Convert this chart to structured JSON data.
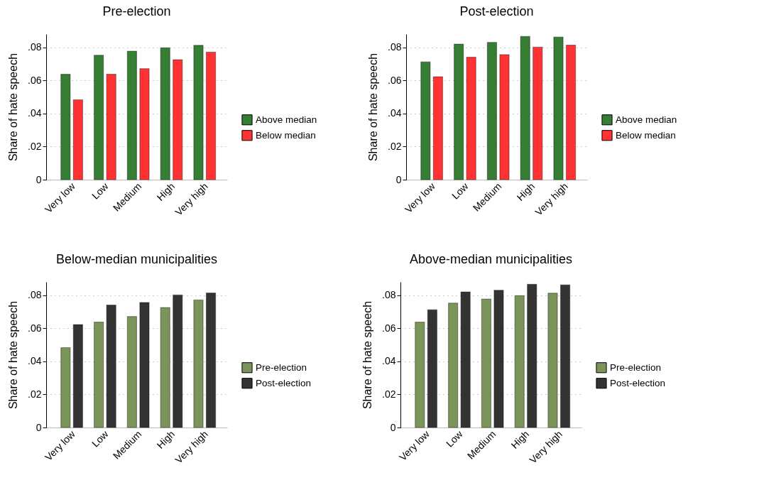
{
  "chart_data": [
    {
      "type": "bar",
      "title": "Pre-election",
      "ylabel": "Share of hate speech",
      "categories": [
        "Very low",
        "Low",
        "Medium",
        "High",
        "Very high"
      ],
      "series": [
        {
          "name": "Above median",
          "color": "#367e34",
          "values": [
            0.0637,
            0.0752,
            0.0777,
            0.0797,
            0.0812
          ]
        },
        {
          "name": "Below median",
          "color": "#ff3333",
          "values": [
            0.0483,
            0.0637,
            0.0671,
            0.0725,
            0.0771
          ]
        }
      ],
      "ylim": [
        0,
        0.088
      ],
      "yticks": [
        {
          "value": 0,
          "label": "0"
        },
        {
          "value": 0.02,
          "label": ".02"
        },
        {
          "value": 0.04,
          "label": ".04"
        },
        {
          "value": 0.06,
          "label": ".06"
        },
        {
          "value": 0.08,
          "label": ".08"
        }
      ],
      "grid": "y",
      "legend": "right"
    },
    {
      "type": "bar",
      "title": "Post-election",
      "ylabel": "Share of hate speech",
      "categories": [
        "Very low",
        "Low",
        "Medium",
        "High",
        "Very high"
      ],
      "series": [
        {
          "name": "Above median",
          "color": "#367e34",
          "values": [
            0.0712,
            0.082,
            0.083,
            0.0866,
            0.0862
          ]
        },
        {
          "name": "Below median",
          "color": "#ff3333",
          "values": [
            0.0622,
            0.074,
            0.0756,
            0.0801,
            0.0813
          ]
        }
      ],
      "ylim": [
        0,
        0.088
      ],
      "yticks": [
        {
          "value": 0,
          "label": "0"
        },
        {
          "value": 0.02,
          "label": ".02"
        },
        {
          "value": 0.04,
          "label": ".04"
        },
        {
          "value": 0.06,
          "label": ".06"
        },
        {
          "value": 0.08,
          "label": ".08"
        }
      ],
      "grid": "y",
      "legend": "right"
    },
    {
      "type": "bar",
      "title": "Below-median municipalities",
      "ylabel": "Share of hate speech",
      "categories": [
        "Very low",
        "Low",
        "Medium",
        "High",
        "Very high"
      ],
      "series": [
        {
          "name": "Pre-election",
          "color": "#7a9459",
          "values": [
            0.0483,
            0.0637,
            0.0671,
            0.0725,
            0.0771
          ]
        },
        {
          "name": "Post-election",
          "color": "#333333",
          "values": [
            0.0622,
            0.074,
            0.0756,
            0.0801,
            0.0813
          ]
        }
      ],
      "ylim": [
        0,
        0.088
      ],
      "yticks": [
        {
          "value": 0,
          "label": "0"
        },
        {
          "value": 0.02,
          "label": ".02"
        },
        {
          "value": 0.04,
          "label": ".04"
        },
        {
          "value": 0.06,
          "label": ".06"
        },
        {
          "value": 0.08,
          "label": ".08"
        }
      ],
      "grid": "y",
      "legend": "right"
    },
    {
      "type": "bar",
      "title": "Above-median municipalities",
      "ylabel": "Share of hate speech",
      "categories": [
        "Very low",
        "Low",
        "Medium",
        "High",
        "Very high"
      ],
      "series": [
        {
          "name": "Pre-election",
          "color": "#7a9459",
          "values": [
            0.0637,
            0.0752,
            0.0777,
            0.0797,
            0.0812
          ]
        },
        {
          "name": "Post-election",
          "color": "#333333",
          "values": [
            0.0712,
            0.082,
            0.083,
            0.0866,
            0.0862
          ]
        }
      ],
      "ylim": [
        0,
        0.088
      ],
      "yticks": [
        {
          "value": 0,
          "label": "0"
        },
        {
          "value": 0.02,
          "label": ".02"
        },
        {
          "value": 0.04,
          "label": ".04"
        },
        {
          "value": 0.06,
          "label": ".06"
        },
        {
          "value": 0.08,
          "label": ".08"
        }
      ],
      "grid": "y",
      "legend": "right"
    }
  ]
}
